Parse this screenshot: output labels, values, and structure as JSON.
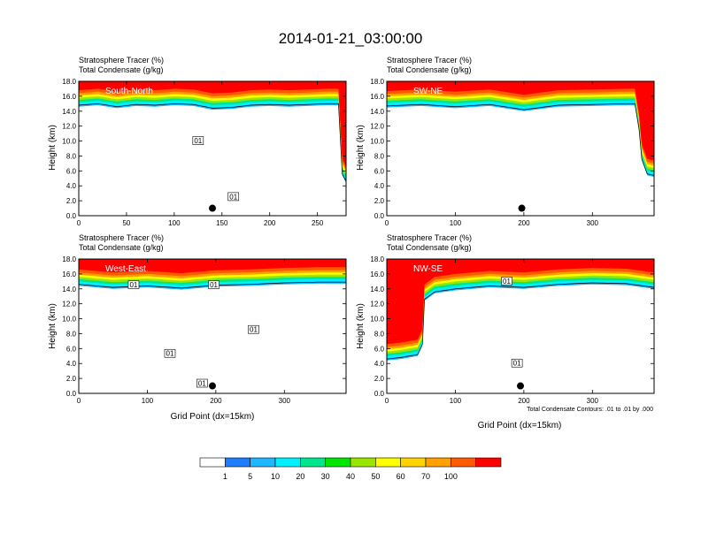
{
  "title": "2014-01-21_03:00:00",
  "field_labels": {
    "tracer": "Stratosphere Tracer   (%)",
    "condensate": "Total Condensate   (g/kg)"
  },
  "y_axis_label": "Height (km)",
  "x_axis_label": "Grid Point (dx=15km)",
  "contour_note": "Total Condensate Contours: .01 to .01 by .000",
  "contour_label": "01",
  "colors": {
    "bins": [
      "#ffffff",
      "#1e7cff",
      "#1fb8ff",
      "#00f0ff",
      "#00e68c",
      "#00e600",
      "#9be600",
      "#ffff00",
      "#ffd200",
      "#ffa000",
      "#ff5a00",
      "#ff0000"
    ],
    "contour": "#000000"
  },
  "colorbar": {
    "ticks": [
      "1",
      "5",
      "10",
      "20",
      "30",
      "40",
      "50",
      "60",
      "70",
      "100"
    ]
  },
  "chart_data": [
    {
      "type": "heatmap",
      "panel_label": "South-North",
      "title": "Stratosphere Tracer (%) / Total Condensate (g/kg)",
      "ylabel": "Height (km)",
      "xlabel": "",
      "xlim": [
        0,
        280
      ],
      "ylim": [
        0,
        18
      ],
      "xticks": [
        0,
        50,
        100,
        150,
        200,
        250
      ],
      "yticks": [
        0,
        2,
        4,
        6,
        8,
        10,
        12,
        14,
        16,
        18
      ],
      "tracer_base_km": [
        [
          0,
          15.2
        ],
        [
          20,
          15.4
        ],
        [
          40,
          15.0
        ],
        [
          60,
          15.3
        ],
        [
          80,
          15.2
        ],
        [
          100,
          15.4
        ],
        [
          120,
          15.3
        ],
        [
          140,
          14.8
        ],
        [
          160,
          14.9
        ],
        [
          180,
          15.2
        ],
        [
          200,
          15.3
        ],
        [
          220,
          15.2
        ],
        [
          240,
          15.3
        ],
        [
          260,
          15.4
        ],
        [
          272,
          15.4
        ],
        [
          276,
          6.0
        ],
        [
          280,
          5.0
        ]
      ],
      "contour_labels": [
        {
          "x": 125,
          "y": 10.0
        },
        {
          "x": 162,
          "y": 2.5
        }
      ],
      "marker": {
        "x": 140,
        "y": 1.0
      }
    },
    {
      "type": "heatmap",
      "panel_label": "SW-NE",
      "title": "Stratosphere Tracer (%) / Total Condensate (g/kg)",
      "ylabel": "Height (km)",
      "xlabel": "",
      "xlim": [
        0,
        390
      ],
      "ylim": [
        0,
        18
      ],
      "xticks": [
        0,
        100,
        200,
        300
      ],
      "yticks": [
        0,
        2,
        4,
        6,
        8,
        10,
        12,
        14,
        16,
        18
      ],
      "tracer_base_km": [
        [
          0,
          15.1
        ],
        [
          50,
          15.3
        ],
        [
          100,
          15.0
        ],
        [
          150,
          15.3
        ],
        [
          200,
          14.6
        ],
        [
          250,
          15.2
        ],
        [
          300,
          15.3
        ],
        [
          350,
          15.4
        ],
        [
          362,
          15.4
        ],
        [
          368,
          12
        ],
        [
          372,
          8
        ],
        [
          380,
          6
        ],
        [
          390,
          5.8
        ]
      ],
      "contour_labels": [],
      "marker": {
        "x": 197,
        "y": 1.0
      }
    },
    {
      "type": "heatmap",
      "panel_label": "West-East",
      "title": "Stratosphere Tracer (%) / Total Condensate (g/kg)",
      "ylabel": "Height (km)",
      "xlabel": "Grid Point (dx=15km)",
      "xlim": [
        0,
        390
      ],
      "ylim": [
        0,
        18
      ],
      "xticks": [
        0,
        100,
        200,
        300
      ],
      "yticks": [
        0,
        2,
        4,
        6,
        8,
        10,
        12,
        14,
        16,
        18
      ],
      "tracer_base_km": [
        [
          0,
          15.0
        ],
        [
          50,
          14.6
        ],
        [
          100,
          14.8
        ],
        [
          150,
          14.5
        ],
        [
          200,
          14.9
        ],
        [
          250,
          15.0
        ],
        [
          300,
          15.2
        ],
        [
          350,
          15.3
        ],
        [
          390,
          15.3
        ]
      ],
      "contour_labels": [
        {
          "x": 80,
          "y": 14.5
        },
        {
          "x": 133,
          "y": 5.3
        },
        {
          "x": 197,
          "y": 14.5
        },
        {
          "x": 255,
          "y": 8.5
        },
        {
          "x": 180,
          "y": 1.3
        }
      ],
      "marker": {
        "x": 195,
        "y": 1.0
      }
    },
    {
      "type": "heatmap",
      "panel_label": "NW-SE",
      "title": "Stratosphere Tracer (%) / Total Condensate (g/kg)",
      "ylabel": "Height (km)",
      "xlabel": "Grid Point (dx=15km)",
      "xlim": [
        0,
        390
      ],
      "ylim": [
        0,
        18
      ],
      "xticks": [
        0,
        100,
        200,
        300
      ],
      "yticks": [
        0,
        2,
        4,
        6,
        8,
        10,
        12,
        14,
        16,
        18
      ],
      "tracer_base_km": [
        [
          0,
          5.0
        ],
        [
          20,
          5.2
        ],
        [
          45,
          5.6
        ],
        [
          52,
          7.0
        ],
        [
          55,
          13.0
        ],
        [
          70,
          14.0
        ],
        [
          100,
          14.4
        ],
        [
          150,
          14.8
        ],
        [
          200,
          14.6
        ],
        [
          250,
          15.0
        ],
        [
          300,
          15.2
        ],
        [
          350,
          15.1
        ],
        [
          390,
          14.6
        ]
      ],
      "contour_labels": [
        {
          "x": 175,
          "y": 15.0
        },
        {
          "x": 190,
          "y": 4.0
        }
      ],
      "marker": {
        "x": 195,
        "y": 1.0
      }
    }
  ]
}
